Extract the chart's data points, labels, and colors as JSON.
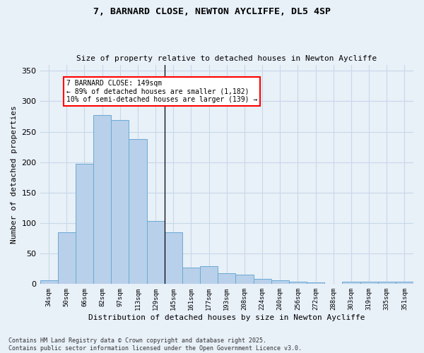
{
  "title1": "7, BARNARD CLOSE, NEWTON AYCLIFFE, DL5 4SP",
  "title2": "Size of property relative to detached houses in Newton Aycliffe",
  "xlabel": "Distribution of detached houses by size in Newton Aycliffe",
  "ylabel": "Number of detached properties",
  "categories": [
    "34sqm",
    "50sqm",
    "66sqm",
    "82sqm",
    "97sqm",
    "113sqm",
    "129sqm",
    "145sqm",
    "161sqm",
    "177sqm",
    "193sqm",
    "208sqm",
    "224sqm",
    "240sqm",
    "256sqm",
    "272sqm",
    "288sqm",
    "303sqm",
    "319sqm",
    "335sqm",
    "351sqm"
  ],
  "values": [
    6,
    85,
    197,
    277,
    269,
    238,
    104,
    85,
    27,
    29,
    18,
    15,
    8,
    6,
    4,
    3,
    0,
    4,
    4,
    4,
    4
  ],
  "bar_color": "#b8d0ea",
  "bar_edge_color": "#6aaad4",
  "annotation_text": "7 BARNARD CLOSE: 149sqm\n← 89% of detached houses are smaller (1,182)\n10% of semi-detached houses are larger (139) →",
  "vline_bin_index": 7,
  "grid_color": "#c8d8e8",
  "background_color": "#e8f0f8",
  "footer": "Contains HM Land Registry data © Crown copyright and database right 2025.\nContains public sector information licensed under the Open Government Licence v3.0.",
  "ylim": [
    0,
    360
  ],
  "yticks": [
    0,
    50,
    100,
    150,
    200,
    250,
    300,
    350
  ]
}
